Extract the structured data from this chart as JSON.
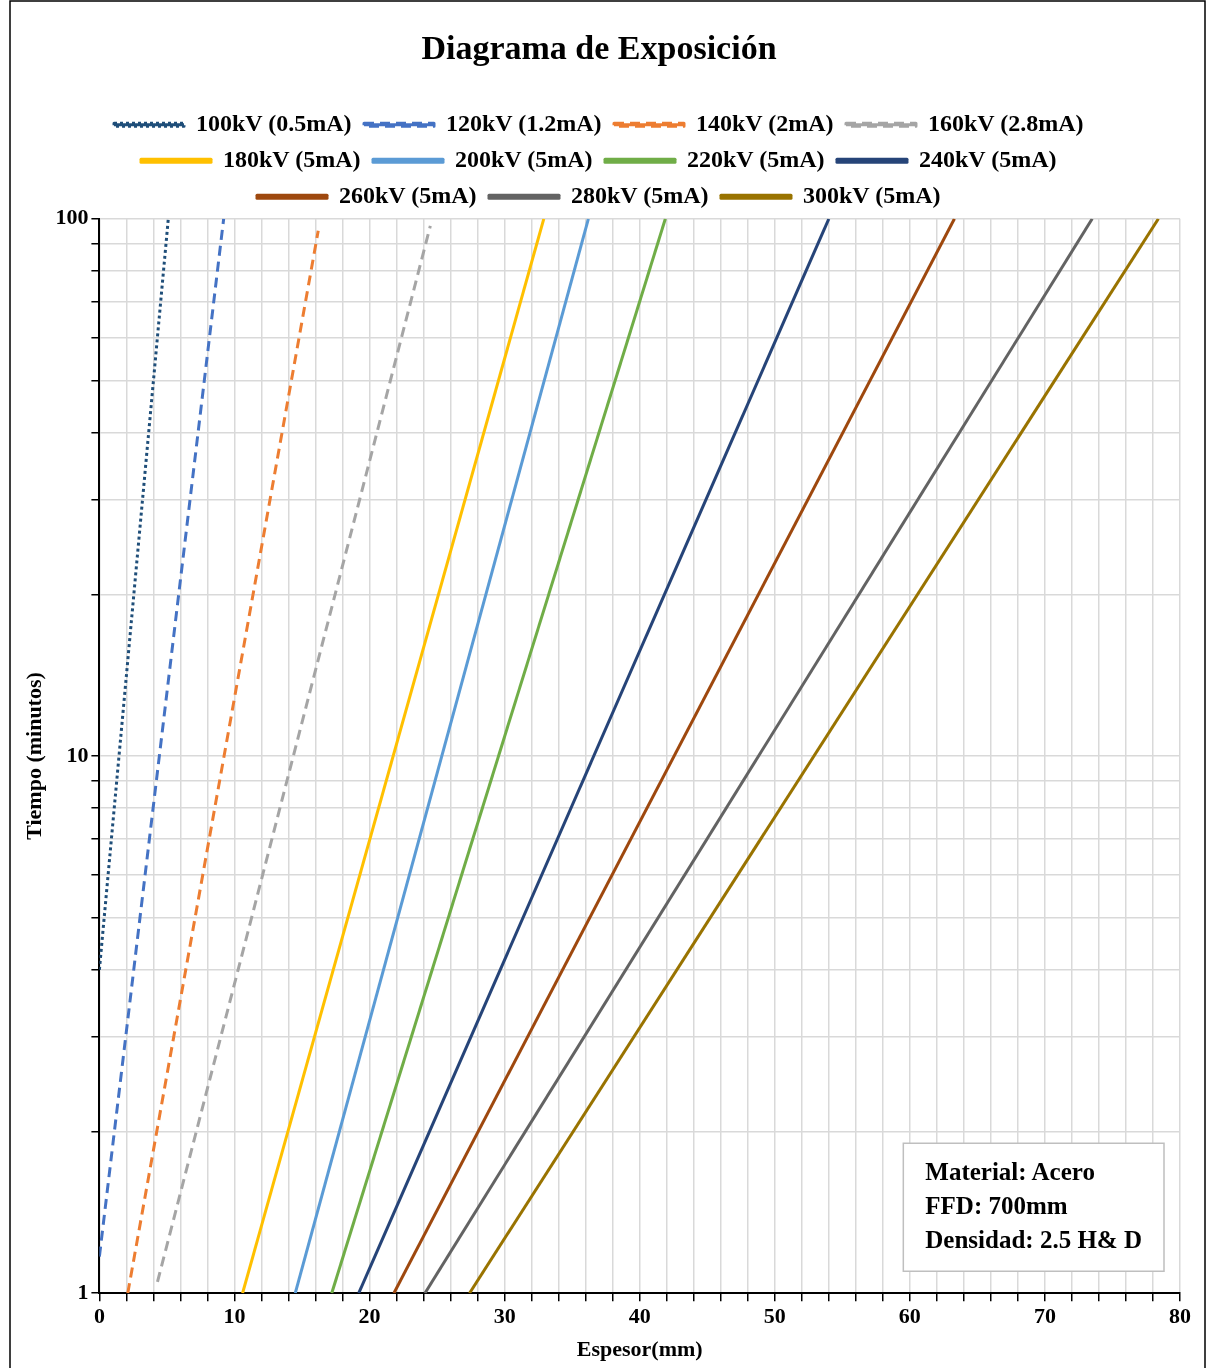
{
  "chart_data": {
    "type": "line",
    "title": "Diagrama de Exposición",
    "xlabel": "Espesor(mm)",
    "ylabel": "Tiempo (minutos)",
    "log": "y",
    "grid": true,
    "legend": "top",
    "marker": "none",
    "xlim": [
      0,
      80
    ],
    "xticks": [
      0,
      {
        "value": 2,
        "label": null
      },
      {
        "value": 4,
        "label": null
      },
      {
        "value": 6,
        "label": null
      },
      {
        "value": 8,
        "label": null
      },
      10,
      {
        "value": 12,
        "label": null
      },
      {
        "value": 14,
        "label": null
      },
      {
        "value": 16,
        "label": null
      },
      {
        "value": 18,
        "label": null
      },
      20,
      {
        "value": 22,
        "label": null
      },
      {
        "value": 24,
        "label": null
      },
      {
        "value": 26,
        "label": null
      },
      {
        "value": 28,
        "label": null
      },
      30,
      {
        "value": 32,
        "label": null
      },
      {
        "value": 34,
        "label": null
      },
      {
        "value": 36,
        "label": null
      },
      {
        "value": 38,
        "label": null
      },
      40,
      {
        "value": 42,
        "label": null
      },
      {
        "value": 44,
        "label": null
      },
      {
        "value": 46,
        "label": null
      },
      {
        "value": 48,
        "label": null
      },
      50,
      {
        "value": 52,
        "label": null
      },
      {
        "value": 54,
        "label": null
      },
      {
        "value": 56,
        "label": null
      },
      {
        "value": 58,
        "label": null
      },
      60,
      {
        "value": 62,
        "label": null
      },
      {
        "value": 64,
        "label": null
      },
      {
        "value": 66,
        "label": null
      },
      {
        "value": 68,
        "label": null
      },
      70,
      {
        "value": 72,
        "label": null
      },
      {
        "value": 74,
        "label": null
      },
      {
        "value": 76,
        "label": null
      },
      {
        "value": 78,
        "label": null
      },
      80
    ],
    "ylim": [
      1,
      100
    ],
    "yticks": [
      1,
      {
        "value": 2,
        "label": null
      },
      {
        "value": 3,
        "label": null
      },
      {
        "value": 4,
        "label": null
      },
      {
        "value": 5,
        "label": null
      },
      {
        "value": 6,
        "label": null
      },
      {
        "value": 7,
        "label": null
      },
      {
        "value": 8,
        "label": null
      },
      {
        "value": 9,
        "label": null
      },
      10,
      {
        "value": 20,
        "label": null
      },
      {
        "value": 30,
        "label": null
      },
      {
        "value": 40,
        "label": null
      },
      {
        "value": 50,
        "label": null
      },
      {
        "value": 60,
        "label": null
      },
      {
        "value": 70,
        "label": null
      },
      {
        "value": 80,
        "label": null
      },
      {
        "value": 90,
        "label": null
      },
      100
    ],
    "series": [
      {
        "name": "100kV (0.5mA)",
        "color": "#1f4e79",
        "line_style": "dotted",
        "x": [
          0,
          5.1
        ],
        "values": [
          4,
          100
        ]
      },
      {
        "name": "120kV (1.2mA)",
        "color": "#4472c4",
        "line_style": "dashed",
        "x": [
          0,
          9.2
        ],
        "values": [
          1.17,
          100
        ]
      },
      {
        "name": "140kV (2mA)",
        "color": "#ed7d31",
        "line_style": "dashed",
        "x": [
          2.1,
          16.2
        ],
        "values": [
          1,
          95
        ]
      },
      {
        "name": "160kV (2.8mA)",
        "color": "#a5a5a5",
        "line_style": "dashed",
        "x": [
          4.3,
          24.5
        ],
        "values": [
          1.05,
          97
        ]
      },
      {
        "name": "180kV (5mA)",
        "color": "#ffc000",
        "line_style": "solid",
        "x": [
          10.6,
          32.9
        ],
        "values": [
          1,
          100
        ]
      },
      {
        "name": "200kV (5mA)",
        "color": "#5b9bd5",
        "line_style": "solid",
        "x": [
          14.5,
          36.2
        ],
        "values": [
          1,
          100
        ]
      },
      {
        "name": "220kV (5mA)",
        "color": "#70ad47",
        "line_style": "solid",
        "x": [
          17.2,
          41.9
        ],
        "values": [
          1,
          100
        ]
      },
      {
        "name": "240kV (5mA)",
        "color": "#264478",
        "line_style": "solid",
        "x": [
          19.2,
          54
        ],
        "values": [
          1,
          100
        ]
      },
      {
        "name": "260kV (5mA)",
        "color": "#9e480e",
        "line_style": "solid",
        "x": [
          21.8,
          63.3
        ],
        "values": [
          1,
          100
        ]
      },
      {
        "name": "280kV (5mA)",
        "color": "#636363",
        "line_style": "solid",
        "x": [
          24.1,
          73.5
        ],
        "values": [
          1,
          100
        ]
      },
      {
        "name": "300kV (5mA)",
        "color": "#997300",
        "line_style": "solid",
        "x": [
          27.4,
          78.4
        ],
        "values": [
          1,
          100
        ]
      }
    ],
    "annotations": [
      "Material: Acero",
      "FFD: 700mm",
      "Densidad: 2.5 H& D"
    ]
  }
}
